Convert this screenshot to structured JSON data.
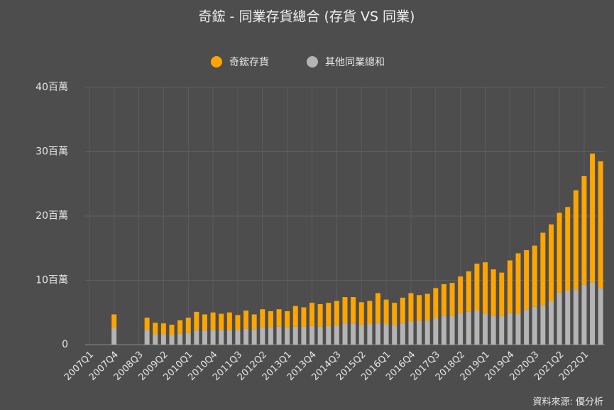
{
  "chart_data": {
    "type": "stacked_bar",
    "title": "奇鋐 - 同業存貨總合 (存貨 VS 同業)",
    "source": "資料來源: 優分析",
    "legend": "top",
    "grid": true,
    "categories": [
      "2007Q1",
      null,
      null,
      "2007Q4",
      null,
      null,
      "2008Q3",
      null,
      null,
      "2009Q2",
      null,
      null,
      "2010Q1",
      null,
      null,
      "2010Q4",
      null,
      null,
      "2011Q3",
      null,
      null,
      "2012Q2",
      null,
      null,
      "2013Q1",
      null,
      null,
      "2013Q4",
      null,
      null,
      "2014Q3",
      null,
      null,
      "2015Q2",
      null,
      null,
      "2016Q1",
      null,
      null,
      "2016Q4",
      null,
      null,
      "2017Q3",
      null,
      null,
      "2018Q2",
      null,
      null,
      "2019Q1",
      null,
      null,
      "2019Q4",
      null,
      null,
      "2020Q3",
      null,
      null,
      "2021Q2",
      null,
      null,
      "2022Q1",
      null,
      null
    ],
    "series": [
      {
        "name": "奇鋐存貨",
        "color": "#ffa500",
        "values": [
          0,
          0,
          0,
          2.1,
          0,
          0,
          0,
          1.9,
          1.8,
          1.7,
          1.6,
          2.1,
          2.4,
          2.9,
          2.5,
          2.7,
          2.5,
          2.7,
          2.3,
          2.8,
          2.3,
          2.8,
          2.5,
          2.7,
          2.5,
          3.2,
          3.0,
          3.6,
          3.5,
          3.6,
          3.8,
          4.1,
          4.1,
          3.5,
          3.6,
          4.6,
          3.8,
          3.5,
          4.0,
          4.4,
          4.0,
          4.1,
          4.7,
          4.9,
          5.1,
          5.7,
          6.3,
          7.3,
          8.0,
          7.2,
          6.7,
          8.2,
          9.4,
          9.2,
          9.5,
          11.3,
          11.9,
          12.4,
          13.0,
          15.4,
          16.9,
          20.0,
          19.7
        ]
      },
      {
        "name": "其他同業總和",
        "color": "#b4b4b4",
        "values": [
          0,
          0,
          0,
          2.6,
          0,
          0,
          0,
          2.3,
          1.6,
          1.6,
          1.5,
          1.7,
          1.8,
          2.2,
          2.2,
          2.3,
          2.3,
          2.3,
          2.3,
          2.5,
          2.4,
          2.7,
          2.7,
          2.8,
          2.7,
          2.8,
          2.8,
          2.9,
          2.8,
          2.9,
          3.0,
          3.3,
          3.3,
          3.1,
          3.2,
          3.4,
          3.2,
          3.0,
          3.3,
          3.6,
          3.7,
          3.8,
          4.1,
          4.5,
          4.5,
          4.9,
          5.1,
          5.3,
          4.8,
          4.5,
          4.5,
          4.9,
          4.8,
          5.5,
          5.9,
          6.1,
          6.8,
          8.1,
          8.4,
          8.6,
          9.3,
          9.7,
          8.8
        ]
      }
    ],
    "ylim": [
      0,
      40
    ],
    "yticks": [
      0,
      {
        "value": 10,
        "label": "10百萬"
      },
      {
        "value": 20,
        "label": "20百萬"
      },
      {
        "value": 30,
        "label": "30百萬"
      },
      {
        "value": 40,
        "label": "40百萬"
      }
    ]
  }
}
